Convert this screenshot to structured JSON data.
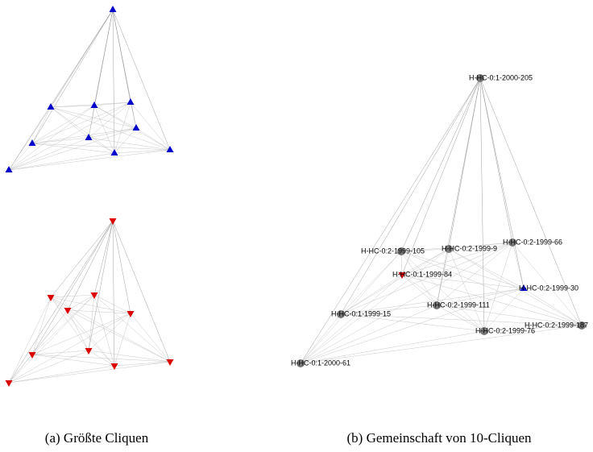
{
  "panels": [
    {
      "caption": "(a) Größte Cliquen"
    },
    {
      "caption": "(b) Gemeinschaft von 10-Cliquen",
      "nodes": [
        {
          "label": "H-HC-0:1-2000-205"
        },
        {
          "label": "H-HC-0:2-1999-105"
        },
        {
          "label": "H-HC-0:2-1999-9"
        },
        {
          "label": "H-HC-0:2-1999-66"
        },
        {
          "label": "H-HC-0:1-1999-84"
        },
        {
          "label": "H-HC-0:2-1999-30"
        },
        {
          "label": "H-HC-0:2-1999-111"
        },
        {
          "label": "H-HC-0:1-1999-15"
        },
        {
          "label": "H-HC-0:2-1999-187"
        },
        {
          "label": "H-HC-0:2-1999-76"
        },
        {
          "label": "H-HC-0:1-2000-61"
        }
      ]
    }
  ]
}
